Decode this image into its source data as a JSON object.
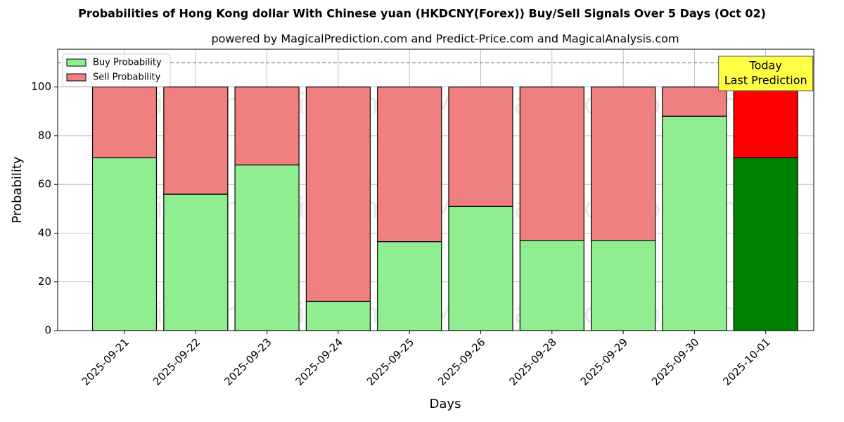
{
  "chart_data": {
    "type": "stacked_bar",
    "title": "Probabilities of Hong Kong dollar With Chinese yuan (HKDCNY(Forex)) Buy/Sell Signals Over 5 Days (Oct 02)",
    "subtitle": "powered by MagicalPrediction.com and Predict-Price.com and MagicalAnalysis.com",
    "x_label": "Days",
    "y_label": "Probability",
    "categories": [
      "2025-09-21",
      "2025-09-22",
      "2025-09-23",
      "2025-09-24",
      "2025-09-25",
      "2025-09-26",
      "2025-09-28",
      "2025-09-29",
      "2025-09-30",
      "2025-10-01"
    ],
    "series": [
      {
        "name": "Buy Probability",
        "color": "#90ee90",
        "colors": [
          "#90ee90",
          "#90ee90",
          "#90ee90",
          "#90ee90",
          "#90ee90",
          "#90ee90",
          "#90ee90",
          "#90ee90",
          "#90ee90",
          "#008000"
        ],
        "values": [
          71,
          56,
          68,
          12,
          36.5,
          51,
          37,
          37,
          88,
          71
        ]
      },
      {
        "name": "Sell Probability",
        "color": "#f08080",
        "colors": [
          "#f08080",
          "#f08080",
          "#f08080",
          "#f08080",
          "#f08080",
          "#f08080",
          "#f08080",
          "#f08080",
          "#f08080",
          "#ff0000"
        ],
        "values": [
          29,
          44,
          32,
          88,
          63.5,
          49,
          63,
          63,
          12,
          29
        ]
      }
    ],
    "ylim": [
      0,
      115.5
    ],
    "yticks": [
      0,
      20,
      40,
      60,
      80,
      100
    ],
    "grid": true,
    "legend": "upper-left",
    "reference_line": 110,
    "annotation": {
      "lines": [
        "Today",
        "Last Prediction"
      ],
      "color": "#ffff44"
    },
    "watermarks": [
      "MagicalAnalysis.com",
      "MagicalPrediction.com"
    ]
  }
}
